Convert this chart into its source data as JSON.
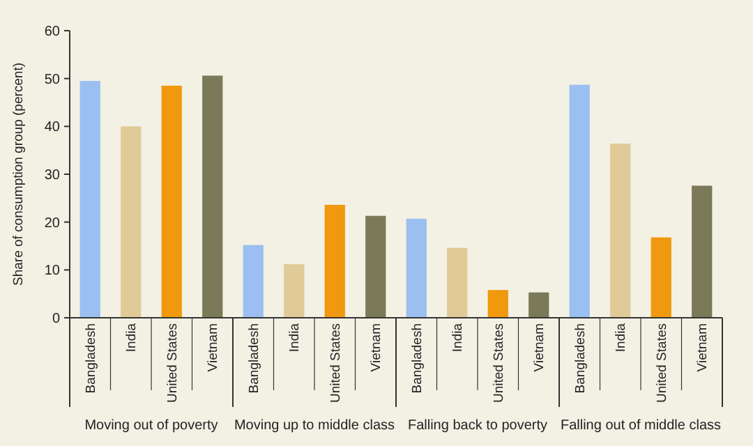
{
  "chart_data": {
    "type": "bar",
    "ylabel": "Share of consumption group (percent)",
    "categories": [
      "Bangladesh",
      "India",
      "United States",
      "Vietnam",
      "Bangladesh",
      "India",
      "United States",
      "Vietnam",
      "Bangladesh",
      "India",
      "United States",
      "Vietnam",
      "Bangladesh",
      "India",
      "United States",
      "Vietnam"
    ],
    "values": [
      49.5,
      40.0,
      48.5,
      50.6,
      15.2,
      11.2,
      23.6,
      21.3,
      20.7,
      14.6,
      5.8,
      5.3,
      48.7,
      36.4,
      16.8,
      27.6
    ],
    "colors": [
      "#9bbff0",
      "#e0cb98",
      "#f0990e",
      "#7b7a58",
      "#9bbff0",
      "#e0cb98",
      "#f0990e",
      "#7b7a58",
      "#9bbff0",
      "#e0cb98",
      "#f0990e",
      "#7b7a58",
      "#9bbff0",
      "#e0cb98",
      "#f0990e",
      "#7b7a58"
    ],
    "annotations": [
      "Moving out of poverty",
      "Moving up to middle class",
      "Falling back to poverty",
      "Falling out of middle class"
    ],
    "ylim": [
      0,
      60
    ],
    "yticks": [
      0,
      10,
      20,
      30,
      40,
      50,
      60
    ]
  }
}
